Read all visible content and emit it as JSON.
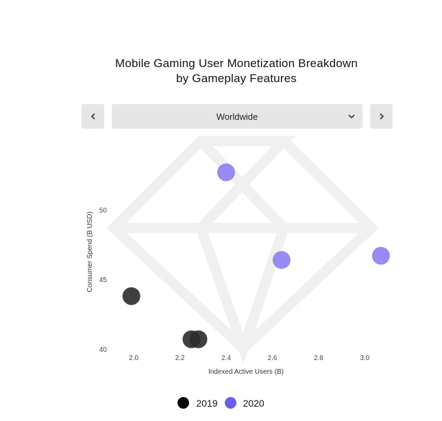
{
  "title_line1": "Mobile Gaming User Monetization Breakdown",
  "title_line2": "by Gameplay Features",
  "nav": {
    "prev_icon": "chevron-left-icon",
    "next_icon": "chevron-right-icon",
    "region_selected": "Worldwide",
    "dropdown_icon": "chevron-down-icon"
  },
  "chart_data": {
    "type": "scatter",
    "xlabel": "Indexed Active Users (B)",
    "ylabel": "Consumer Spend (B USD)",
    "xlim": [
      1.89,
      3.1
    ],
    "ylim": [
      39.5,
      55.0
    ],
    "x_ticks": [
      2.0,
      2.2,
      2.4,
      2.6,
      2.8,
      3.0
    ],
    "x_tick_labels": [
      "2.0",
      "2.2",
      "2.4",
      "2.6",
      "2.8",
      "3.0"
    ],
    "y_ticks": [
      40,
      45,
      50
    ],
    "y_tick_labels": [
      "40",
      "45",
      "50"
    ],
    "grid": false,
    "legend_position": "bottom",
    "series": [
      {
        "name": "2019",
        "color": "#2b2b2b",
        "points": [
          {
            "x": 1.99,
            "y": 43.8
          },
          {
            "x": 2.25,
            "y": 40.7
          },
          {
            "x": 2.28,
            "y": 40.7
          }
        ]
      },
      {
        "name": "2020",
        "color": "#8b7ff0",
        "legend_color": "#6a5cf0",
        "points": [
          {
            "x": 2.4,
            "y": 52.7
          },
          {
            "x": 2.64,
            "y": 46.4
          },
          {
            "x": 3.07,
            "y": 46.7
          }
        ]
      }
    ]
  }
}
